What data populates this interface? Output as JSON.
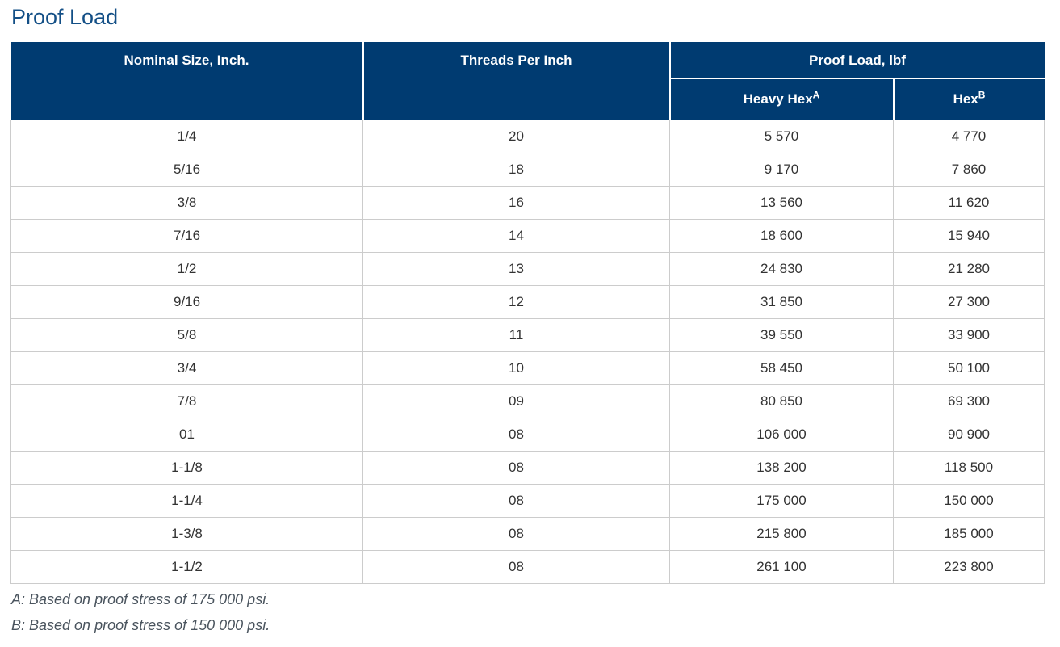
{
  "page": {
    "title": "Proof Load"
  },
  "table": {
    "headers": {
      "nominal_size": "Nominal Size, Inch.",
      "threads_per_inch": "Threads Per Inch",
      "proof_load_group": "Proof Load, lbf",
      "heavy_hex": "Heavy Hex",
      "heavy_hex_note": "A",
      "hex": "Hex",
      "hex_note": "B"
    },
    "rows": [
      [
        "1/4",
        "20",
        "5 570",
        "4 770"
      ],
      [
        "5/16",
        "18",
        "9 170",
        "7 860"
      ],
      [
        "3/8",
        "16",
        "13 560",
        "11 620"
      ],
      [
        "7/16",
        "14",
        "18 600",
        "15 940"
      ],
      [
        "1/2",
        "13",
        "24 830",
        "21 280"
      ],
      [
        "9/16",
        "12",
        "31 850",
        "27 300"
      ],
      [
        "5/8",
        "11",
        "39 550",
        "33 900"
      ],
      [
        "3/4",
        "10",
        "58 450",
        "50 100"
      ],
      [
        "7/8",
        "09",
        "80 850",
        "69 300"
      ],
      [
        "01",
        "08",
        "106 000",
        "90 900"
      ],
      [
        "1-1/8",
        "08",
        "138 200",
        "118 500"
      ],
      [
        "1-1/4",
        "08",
        "175 000",
        "150 000"
      ],
      [
        "1-3/8",
        "08",
        "215 800",
        "185 000"
      ],
      [
        "1-1/2",
        "08",
        "261 100",
        "223 800"
      ]
    ]
  },
  "footnotes": [
    "A: Based on proof stress of 175 000 psi.",
    "B: Based on proof stress of 150 000 psi."
  ],
  "colors": {
    "header_bg": "#003B71",
    "header_text": "#FFFFFF",
    "header_divider": "#FFFFFF",
    "title_text": "#134F86",
    "cell_border": "#CCCCCC",
    "cell_text": "#333333",
    "footnote_text": "#4A545E",
    "page_bg": "#FFFFFF"
  }
}
